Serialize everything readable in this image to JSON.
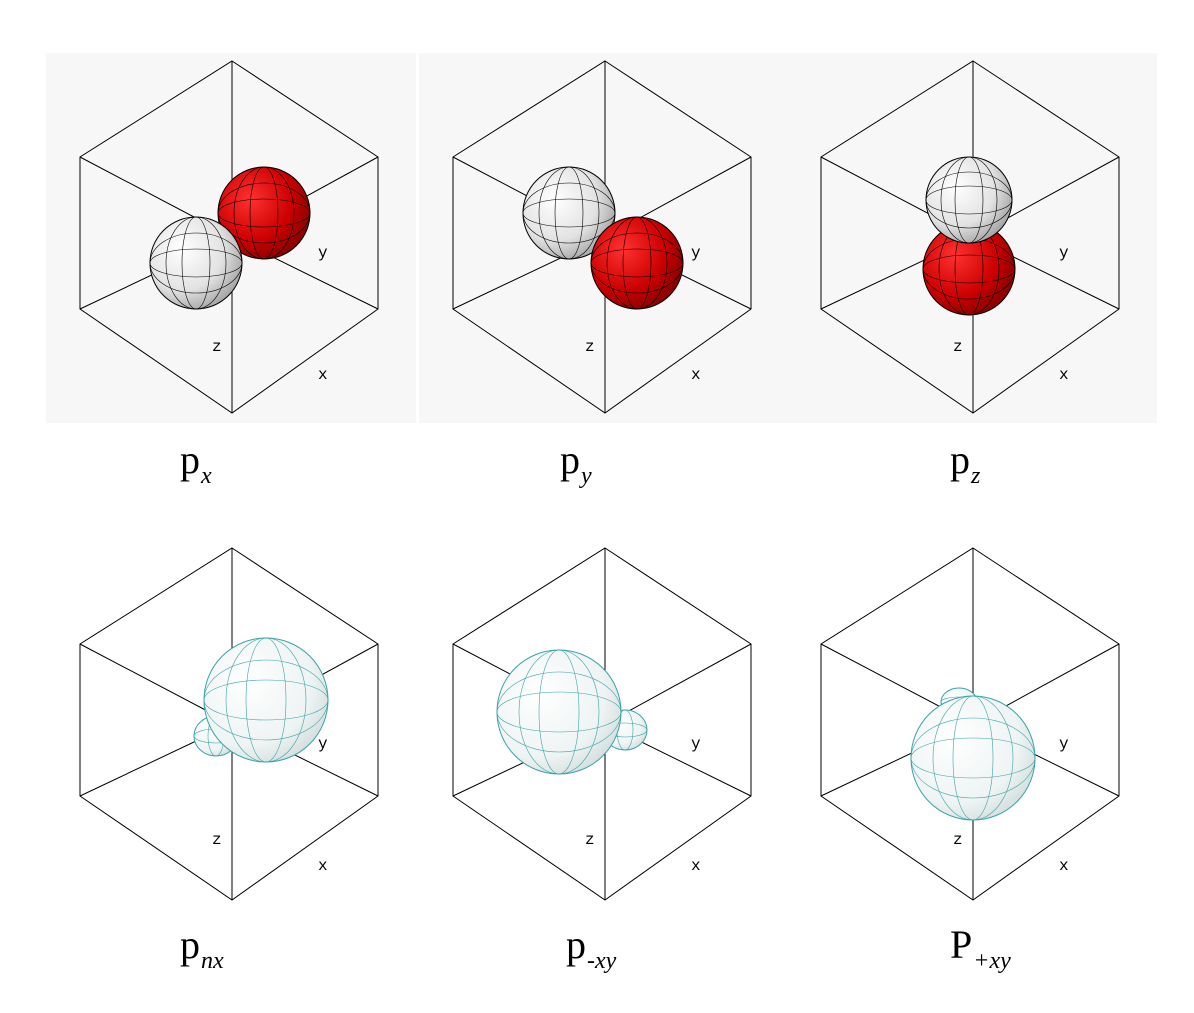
{
  "panels": [
    {
      "axes": {
        "x": "x",
        "y": "y",
        "z": "z"
      },
      "caption": {
        "main": "p",
        "sub": "x"
      },
      "lobe_colors": [
        "#ffffff",
        "#d40000"
      ]
    },
    {
      "axes": {
        "x": "x",
        "y": "y",
        "z": "z"
      },
      "caption": {
        "main": "p",
        "sub": "y"
      },
      "lobe_colors": [
        "#ffffff",
        "#d40000"
      ]
    },
    {
      "axes": {
        "x": "x",
        "y": "y",
        "z": "z"
      },
      "caption": {
        "main": "p",
        "sub": "z"
      },
      "lobe_colors": [
        "#ffffff",
        "#d40000"
      ]
    },
    {
      "axes": {
        "x": "x",
        "y": "y",
        "z": "z"
      },
      "caption": {
        "main": "p",
        "sub": "nx"
      },
      "lobe_colors": [
        "#ffffff",
        "#3aa3a6"
      ]
    },
    {
      "axes": {
        "x": "x",
        "y": "y",
        "z": "z"
      },
      "caption": {
        "main": "p",
        "sub": "-xy"
      },
      "lobe_colors": [
        "#ffffff",
        "#3aa3a6"
      ]
    },
    {
      "axes": {
        "x": "x",
        "y": "y",
        "z": "z"
      },
      "caption": {
        "main": "P",
        "sub": "+xy"
      },
      "lobe_colors": [
        "#ffffff",
        "#3aa3a6"
      ]
    }
  ]
}
